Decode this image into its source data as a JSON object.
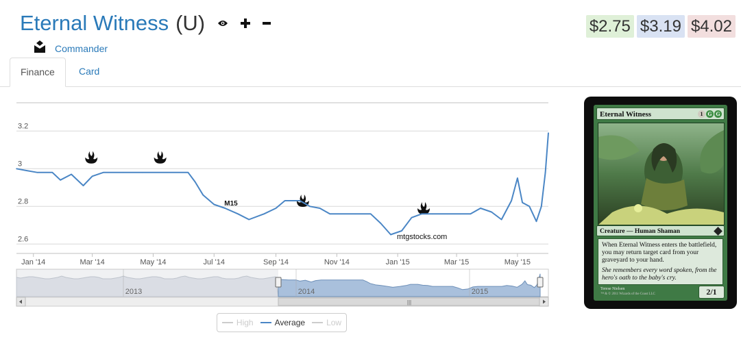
{
  "card": {
    "name": "Eternal Witness",
    "rarity": "(U)",
    "format": "Commander",
    "type_line": "Creature — Human Shaman",
    "rules_text": "When Eternal Witness enters the battlefield, you may return target card from your graveyard to your hand.",
    "flavor_text": "She remembers every word spoken, from the hero's oath to the baby's cry.",
    "power_toughness": "2/1",
    "mana_cost": [
      "1",
      "G",
      "G"
    ],
    "artist": "Terese Nielsen",
    "copyright": "™ & © 2011 Wizards of the Coast LLC"
  },
  "actions": {
    "watch_icon": "eye-icon",
    "add_icon": "plus-icon",
    "remove_icon": "minus-icon",
    "format_icon": "commander-icon"
  },
  "prices": [
    {
      "label": "$2.75",
      "bg": "#dff0d8"
    },
    {
      "label": "$3.19",
      "bg": "#d9e2f3"
    },
    {
      "label": "$4.02",
      "bg": "#f2dede"
    }
  ],
  "tabs": [
    {
      "label": "Finance",
      "active": true
    },
    {
      "label": "Card",
      "active": false
    }
  ],
  "colors": {
    "link": "#2a7ab9",
    "series_line": "#4a86c5",
    "navigator_fill": "#a9c0dc",
    "navigator_fill_inactive": "#e6e9ee"
  },
  "chart_data": {
    "type": "line",
    "watermark": "mtgstocks.com",
    "y_ticks": [
      "3.2",
      "3",
      "2.8",
      "2.6"
    ],
    "ylim": [
      2.55,
      3.35
    ],
    "x_ticks": [
      "Jan '14",
      "Mar '14",
      "May '14",
      "Jul '14",
      "Sep '14",
      "Nov '14",
      "Jan '15",
      "Mar '15",
      "May '15"
    ],
    "x_range": [
      "2013-12-15",
      "2015-06-01"
    ],
    "grid": true,
    "legend_position": "bottom-center",
    "legend": [
      {
        "name": "High",
        "color": "#cccccc",
        "active": false
      },
      {
        "name": "Average",
        "color": "#4a86c5",
        "active": true
      },
      {
        "name": "Low",
        "color": "#cccccc",
        "active": false
      }
    ],
    "series": [
      {
        "name": "Average",
        "points": [
          [
            "2013-12-15",
            3.0
          ],
          [
            "2013-12-25",
            2.99
          ],
          [
            "2014-01-05",
            2.98
          ],
          [
            "2014-01-20",
            2.98
          ],
          [
            "2014-01-28",
            2.94
          ],
          [
            "2014-02-08",
            2.97
          ],
          [
            "2014-02-20",
            2.91
          ],
          [
            "2014-03-01",
            2.96
          ],
          [
            "2014-03-12",
            2.98
          ],
          [
            "2014-04-01",
            2.98
          ],
          [
            "2014-04-20",
            2.98
          ],
          [
            "2014-05-15",
            2.98
          ],
          [
            "2014-06-05",
            2.98
          ],
          [
            "2014-06-12",
            2.93
          ],
          [
            "2014-06-20",
            2.86
          ],
          [
            "2014-07-01",
            2.81
          ],
          [
            "2014-07-12",
            2.79
          ],
          [
            "2014-07-25",
            2.76
          ],
          [
            "2014-08-05",
            2.73
          ],
          [
            "2014-08-20",
            2.76
          ],
          [
            "2014-09-01",
            2.79
          ],
          [
            "2014-09-10",
            2.83
          ],
          [
            "2014-09-25",
            2.83
          ],
          [
            "2014-10-05",
            2.8
          ],
          [
            "2014-10-15",
            2.79
          ],
          [
            "2014-10-25",
            2.76
          ],
          [
            "2014-11-05",
            2.76
          ],
          [
            "2014-11-20",
            2.76
          ],
          [
            "2014-12-05",
            2.76
          ],
          [
            "2014-12-15",
            2.71
          ],
          [
            "2014-12-25",
            2.65
          ],
          [
            "2015-01-05",
            2.67
          ],
          [
            "2015-01-15",
            2.74
          ],
          [
            "2015-01-25",
            2.76
          ],
          [
            "2015-02-05",
            2.76
          ],
          [
            "2015-02-20",
            2.76
          ],
          [
            "2015-03-05",
            2.76
          ],
          [
            "2015-03-15",
            2.76
          ],
          [
            "2015-03-25",
            2.79
          ],
          [
            "2015-04-05",
            2.77
          ],
          [
            "2015-04-15",
            2.73
          ],
          [
            "2015-04-25",
            2.83
          ],
          [
            "2015-05-01",
            2.95
          ],
          [
            "2015-05-06",
            2.82
          ],
          [
            "2015-05-13",
            2.8
          ],
          [
            "2015-05-20",
            2.72
          ],
          [
            "2015-05-25",
            2.8
          ],
          [
            "2015-05-29",
            2.98
          ],
          [
            "2015-06-01",
            3.19
          ]
        ]
      }
    ],
    "set_markers": [
      {
        "date": "2014-02-28",
        "value": 3.06,
        "label": "set-release-icon"
      },
      {
        "date": "2014-05-08",
        "value": 3.06,
        "label": "set-release-icon"
      },
      {
        "date": "2014-07-18",
        "value": 2.82,
        "label": "M15"
      },
      {
        "date": "2014-09-28",
        "value": 2.83,
        "label": "set-release-icon"
      },
      {
        "date": "2015-01-27",
        "value": 2.79,
        "label": "set-release-icon"
      }
    ],
    "navigator": {
      "year_labels": [
        "2013",
        "2014",
        "2015"
      ],
      "scrollbar_grip": "|||"
    }
  }
}
